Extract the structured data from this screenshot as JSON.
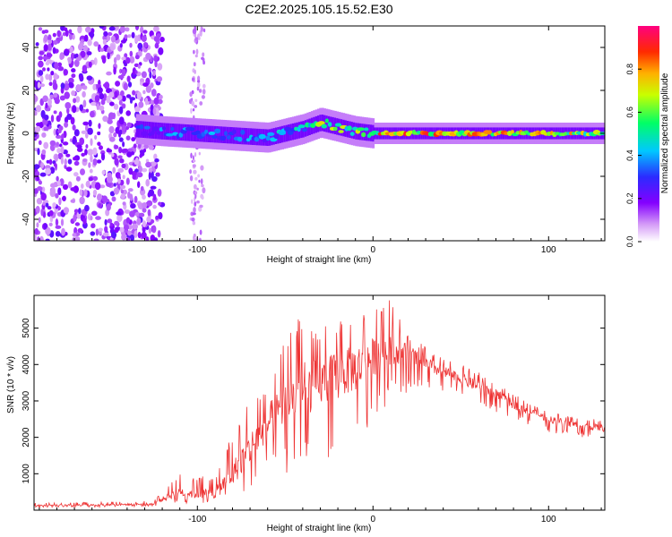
{
  "figure": {
    "title": "C2E2.2025.105.15.52.E30"
  },
  "chart_data": [
    {
      "type": "heatmap",
      "title": "",
      "xlabel": "Height of straight line (km)",
      "ylabel": "Frequency (Hz)",
      "xlim": [
        -193,
        132
      ],
      "ylim": [
        -50,
        50
      ],
      "x_ticks": [
        -100,
        0,
        100
      ],
      "x_tick_labels": [
        "-100",
        "0",
        "100"
      ],
      "y_ticks": [
        -40,
        -20,
        0,
        20,
        40
      ],
      "y_tick_labels": [
        "-40",
        "-20",
        "0",
        "20",
        "40"
      ],
      "colorbar": {
        "label": "Normalized spectral amplitude",
        "range": [
          0,
          1
        ],
        "ticks": [
          0.0,
          0.2,
          0.4,
          0.6,
          0.8
        ],
        "tick_labels": [
          "0.0",
          "0.2",
          "0.4",
          "0.6",
          "0.8"
        ],
        "colormap": "rainbow (white-violet-blue-cyan-green-yellow-red-magenta)"
      },
      "description_points": {
        "noise_region_x": [
          -193,
          -120
        ],
        "noise_columns_x": [
          -104,
          -96
        ],
        "ridge": {
          "x": [
            -135,
            -120,
            -100,
            -80,
            -60,
            -40,
            -30,
            -20,
            -10,
            0,
            20,
            50,
            80,
            100,
            132
          ],
          "freq": [
            2,
            1,
            0,
            -1,
            -2,
            2,
            5,
            3,
            1,
            0,
            0,
            0,
            0,
            0,
            0
          ],
          "amplitude": [
            0.3,
            0.4,
            0.45,
            0.45,
            0.4,
            0.55,
            0.7,
            0.65,
            0.75,
            0.85,
            0.9,
            0.9,
            0.88,
            0.9,
            0.7
          ]
        }
      },
      "grid": false
    },
    {
      "type": "line",
      "title": "",
      "xlabel": "Height of straight line (km)",
      "ylabel": "SNR (10 * v/v)",
      "xlim": [
        -193,
        132
      ],
      "ylim": [
        0,
        5900
      ],
      "x_ticks": [
        -100,
        0,
        100
      ],
      "x_tick_labels": [
        "-100",
        "0",
        "100"
      ],
      "y_ticks": [
        1000,
        2000,
        3000,
        4000,
        5000
      ],
      "y_tick_labels": [
        "1000",
        "2000",
        "3000",
        "4000",
        "5000"
      ],
      "series": [
        {
          "color": "#ee3333",
          "envelope_x": [
            -193,
            -160,
            -125,
            -120,
            -110,
            -100,
            -90,
            -80,
            -70,
            -60,
            -50,
            -40,
            -30,
            -20,
            -10,
            0,
            10,
            20,
            30,
            40,
            50,
            60,
            70,
            80,
            90,
            100,
            110,
            120,
            132
          ],
          "envelope_low": [
            80,
            80,
            90,
            150,
            200,
            180,
            150,
            300,
            500,
            800,
            1000,
            1100,
            1300,
            1500,
            1700,
            2500,
            3000,
            3200,
            3300,
            3200,
            3100,
            2900,
            2700,
            2500,
            2300,
            2150,
            2050,
            2000,
            1950
          ],
          "envelope_high": [
            200,
            220,
            260,
            500,
            1000,
            950,
            900,
            2200,
            3000,
            3600,
            4700,
            5500,
            5100,
            5200,
            5400,
            5500,
            5800,
            4800,
            4500,
            4200,
            4000,
            3800,
            3500,
            3200,
            2900,
            2700,
            2600,
            2500,
            2500
          ],
          "mean": [
            130,
            140,
            170,
            300,
            500,
            450,
            450,
            1000,
            1700,
            2400,
            2900,
            3300,
            3500,
            3700,
            3900,
            4200,
            4500,
            4300,
            4000,
            3800,
            3600,
            3400,
            3200,
            2900,
            2700,
            2500,
            2400,
            2300,
            2250
          ]
        }
      ],
      "grid": false
    }
  ]
}
